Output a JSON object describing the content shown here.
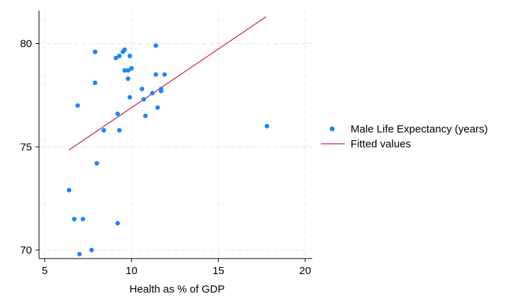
{
  "chart_data": {
    "type": "scatter",
    "title": "",
    "xlabel": "Health as % of GDP",
    "ylabel": "",
    "xlim": [
      5,
      20
    ],
    "ylim": [
      70,
      81.3
    ],
    "xticks": [
      5,
      10,
      15,
      20
    ],
    "yticks": [
      70,
      75,
      80
    ],
    "grid": true,
    "legend_position": "right",
    "series": [
      {
        "name": "Male Life Expectancy (years)",
        "kind": "scatter",
        "color": "#1a85ff",
        "points": [
          [
            7.9,
            79.6
          ],
          [
            7.9,
            79.6
          ],
          [
            9.1,
            79.3
          ],
          [
            9.3,
            79.4
          ],
          [
            9.5,
            79.6
          ],
          [
            9.6,
            79.7
          ],
          [
            9.9,
            79.4
          ],
          [
            11.4,
            79.9
          ],
          [
            9.6,
            78.7
          ],
          [
            9.8,
            78.7
          ],
          [
            10.0,
            78.8
          ],
          [
            7.9,
            78.1
          ],
          [
            9.8,
            78.3
          ],
          [
            11.4,
            78.5
          ],
          [
            11.9,
            78.5
          ],
          [
            10.6,
            77.8
          ],
          [
            11.2,
            77.6
          ],
          [
            11.7,
            77.8
          ],
          [
            11.7,
            77.7
          ],
          [
            9.9,
            77.4
          ],
          [
            10.7,
            77.3
          ],
          [
            6.9,
            77.0
          ],
          [
            11.5,
            76.9
          ],
          [
            9.2,
            76.6
          ],
          [
            10.8,
            76.5
          ],
          [
            8.4,
            75.8
          ],
          [
            9.3,
            75.8
          ],
          [
            17.8,
            76.0
          ],
          [
            8.0,
            74.2
          ],
          [
            6.4,
            72.9
          ],
          [
            6.7,
            71.5
          ],
          [
            7.2,
            71.5
          ],
          [
            9.2,
            71.3
          ],
          [
            7.7,
            70.0
          ],
          [
            7.0,
            69.8
          ]
        ]
      },
      {
        "name": "Fitted values",
        "kind": "line",
        "color": "#c1264f",
        "points": [
          [
            6.4,
            74.85
          ],
          [
            17.75,
            81.3
          ]
        ]
      }
    ]
  }
}
